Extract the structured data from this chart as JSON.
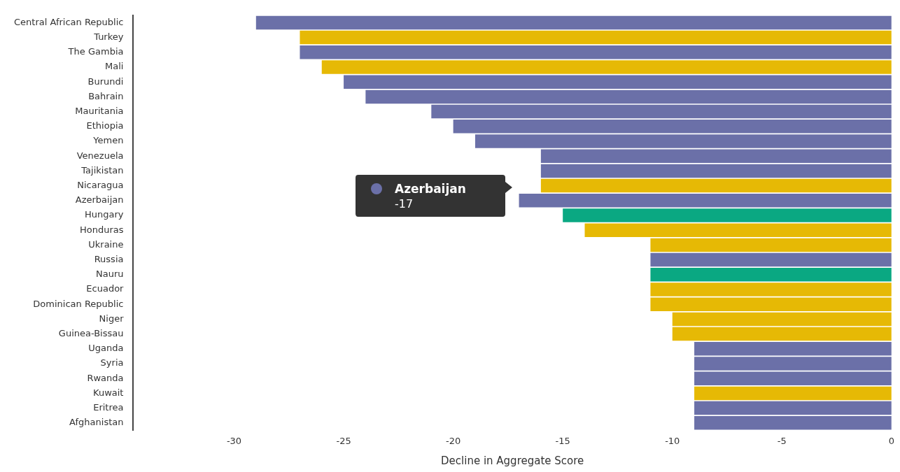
{
  "chart_data": {
    "type": "bar",
    "orientation": "horizontal",
    "xlabel": "Decline in Aggregate Score",
    "categories": [
      "Central African Republic",
      "Turkey",
      "The Gambia",
      "Mali",
      "Burundi",
      "Bahrain",
      "Mauritania",
      "Ethiopia",
      "Yemen",
      "Venezuela",
      "Tajikistan",
      "Nicaragua",
      "Azerbaijan",
      "Hungary",
      "Honduras",
      "Ukraine",
      "Russia",
      "Nauru",
      "Ecuador",
      "Dominican Republic",
      "Niger",
      "Guinea-Bissau",
      "Uganda",
      "Syria",
      "Rwanda",
      "Kuwait",
      "Eritrea",
      "Afghanistan"
    ],
    "values": [
      -29,
      -27,
      -27,
      -26,
      -25,
      -24,
      -21,
      -20,
      -19,
      -16,
      -16,
      -16,
      -17,
      -15,
      -14,
      -11,
      -11,
      -11,
      -11,
      -11,
      -10,
      -10,
      -9,
      -9,
      -9,
      -9,
      -9,
      -9
    ],
    "colors": [
      "#6b70a8",
      "#e6b905",
      "#6b70a8",
      "#e6b905",
      "#6b70a8",
      "#6b70a8",
      "#6b70a8",
      "#6b70a8",
      "#6b70a8",
      "#6b70a8",
      "#6b70a8",
      "#e6b905",
      "#6b70a8",
      "#0aa882",
      "#e6b905",
      "#e6b905",
      "#6b70a8",
      "#0aa882",
      "#e6b905",
      "#e6b905",
      "#e6b905",
      "#e6b905",
      "#6b70a8",
      "#6b70a8",
      "#6b70a8",
      "#e6b905",
      "#6b70a8",
      "#6b70a8"
    ],
    "xlim": [
      -34.6,
      0
    ],
    "xticks": [
      -30,
      -25,
      -20,
      -15,
      -10,
      -5,
      0
    ],
    "grid": false,
    "legend": false,
    "annotations": [
      "Azerbaijan",
      "-17"
    ]
  }
}
